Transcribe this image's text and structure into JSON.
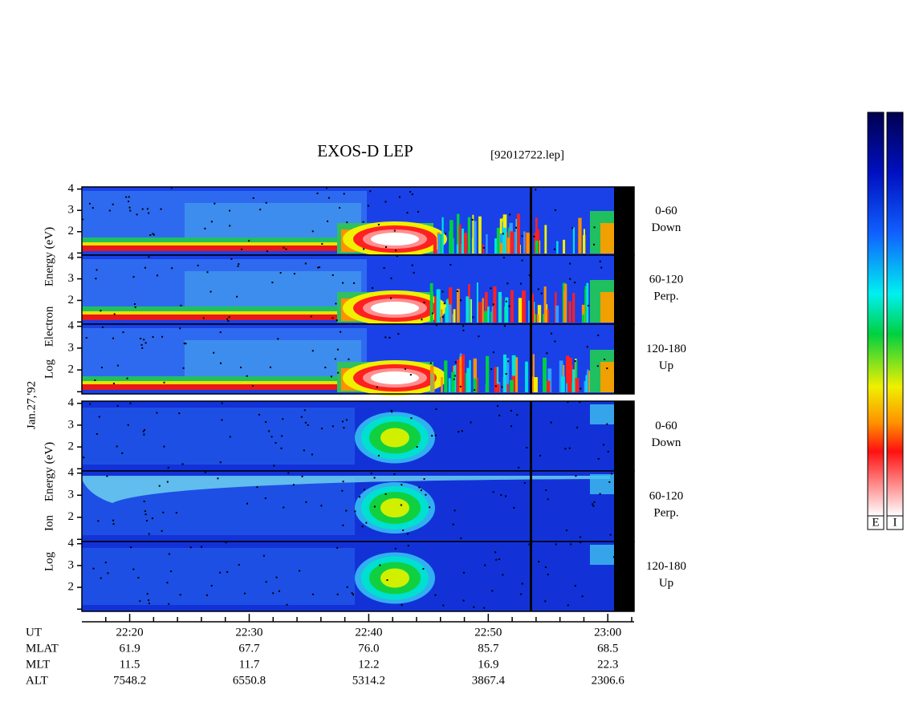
{
  "title": "EXOS-D LEP",
  "file": "[92012722.lep]",
  "date": "Jan.27,'92",
  "electron_label": [
    "Log",
    "Electron",
    "Energy (eV)"
  ],
  "ion_label": [
    "Log",
    "Ion",
    "Energy (eV)"
  ],
  "angles": [
    [
      "0-60",
      "Down"
    ],
    [
      "60-120",
      "Perp."
    ],
    [
      "120-180",
      "Up"
    ]
  ],
  "energy_axis": {
    "ylim": [
      0.9,
      4.1
    ],
    "yticks": [
      2,
      3,
      4
    ],
    "minor_yticks": [
      1
    ]
  },
  "time_axis": {
    "xlim": [
      1336,
      1382.2
    ],
    "xticks": [
      {
        "value": 1340,
        "label": "22:20"
      },
      {
        "value": 1350,
        "label": "22:30"
      },
      {
        "value": 1360,
        "label": "22:40"
      },
      {
        "value": 1370,
        "label": "22:50"
      },
      {
        "value": 1380,
        "label": "23:00"
      }
    ],
    "minor_xticks": [
      1338,
      1342,
      1344,
      1346,
      1348,
      1352,
      1354,
      1356,
      1358,
      1362,
      1364,
      1366,
      1368,
      1372,
      1374,
      1376,
      1378,
      1382
    ]
  },
  "ephemeris": {
    "labels": [
      "UT",
      "MLAT",
      "MLT",
      "ALT"
    ],
    "rows": [
      [
        "61.9",
        "67.7",
        "76.0",
        "85.7",
        "68.5"
      ],
      [
        "11.5",
        "11.7",
        "12.2",
        "16.9",
        "22.3"
      ],
      [
        "7548.2",
        "6550.8",
        "5314.2",
        "3867.4",
        "2306.6"
      ]
    ]
  },
  "colorbars": [
    "E",
    "I"
  ]
}
